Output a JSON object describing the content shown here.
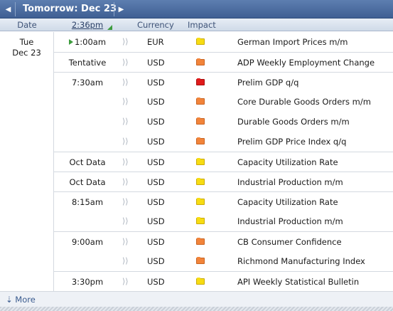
{
  "topbar": {
    "prev_icon": "◀",
    "title": "Tomorrow: Dec 23",
    "next_icon": "▶"
  },
  "columns": {
    "date": "Date",
    "time": "2:36pm",
    "currency": "Currency",
    "impact": "Impact"
  },
  "day": {
    "dow": "Tue",
    "date": "Dec 23"
  },
  "sound_icon": "⟩⟩",
  "events": [
    {
      "time": "1:00am",
      "currency": "EUR",
      "impact": "low",
      "event": "German Import Prices m/m"
    },
    {
      "time": "Tentative",
      "currency": "USD",
      "impact": "medium",
      "event": "ADP Weekly Employment Change"
    },
    {
      "time": "7:30am",
      "currency": "USD",
      "impact": "high",
      "event": "Prelim GDP q/q"
    },
    {
      "time": "",
      "currency": "USD",
      "impact": "medium",
      "event": "Core Durable Goods Orders m/m"
    },
    {
      "time": "",
      "currency": "USD",
      "impact": "medium",
      "event": "Durable Goods Orders m/m"
    },
    {
      "time": "",
      "currency": "USD",
      "impact": "medium",
      "event": "Prelim GDP Price Index q/q"
    },
    {
      "time": "Oct Data",
      "currency": "USD",
      "impact": "low",
      "event": "Capacity Utilization Rate"
    },
    {
      "time": "Oct Data",
      "currency": "USD",
      "impact": "low",
      "event": "Industrial Production m/m"
    },
    {
      "time": "8:15am",
      "currency": "USD",
      "impact": "low",
      "event": "Capacity Utilization Rate"
    },
    {
      "time": "",
      "currency": "USD",
      "impact": "low",
      "event": "Industrial Production m/m"
    },
    {
      "time": "9:00am",
      "currency": "USD",
      "impact": "medium",
      "event": "CB Consumer Confidence"
    },
    {
      "time": "",
      "currency": "USD",
      "impact": "medium",
      "event": "Richmond Manufacturing Index"
    },
    {
      "time": "3:30pm",
      "currency": "USD",
      "impact": "low",
      "event": "API Weekly Statistical Bulletin"
    }
  ],
  "footer": {
    "more_label": "⇣ More"
  },
  "colors": {
    "impact_low": "#f7dc12",
    "impact_medium": "#f2843a",
    "impact_high": "#e01b1b",
    "header_blue": "#4a6ba0"
  }
}
